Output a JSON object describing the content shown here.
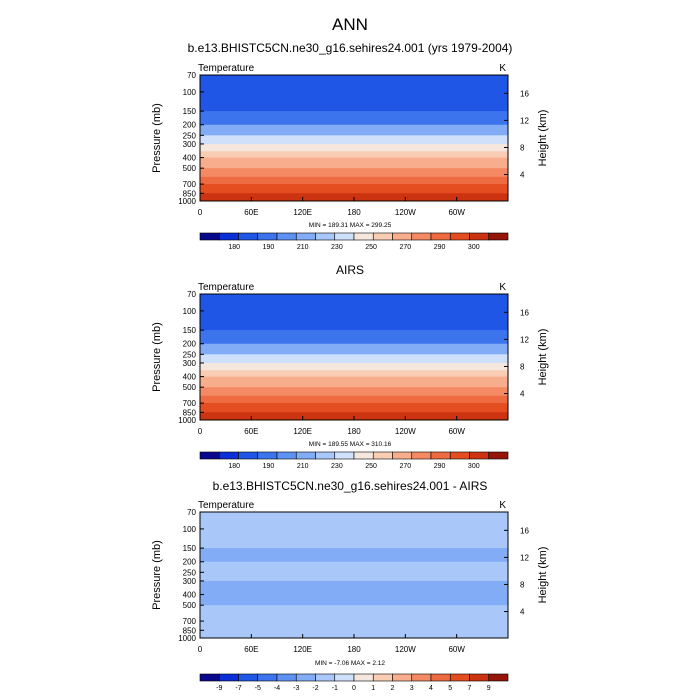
{
  "page_title": "ANN",
  "chart_data": [
    {
      "type": "heatmap",
      "title": "b.e13.BHISTC5CN.ne30_g16.sehires24.001 (yrs 1979-2004)",
      "variable": "Temperature",
      "units": "K",
      "ylabel": "Pressure (mb)",
      "y2label": "Height (km)",
      "x_ticks": [
        "0",
        "60E",
        "120E",
        "180",
        "120W",
        "60W"
      ],
      "x_tick_lon": [
        0,
        60,
        120,
        180,
        240,
        300
      ],
      "xlim": [
        0,
        360
      ],
      "y_ticks": [
        "70",
        "100",
        "150",
        "200",
        "250",
        "300",
        "400",
        "500",
        "700",
        "850",
        "1000"
      ],
      "y_tick_p": [
        70,
        100,
        150,
        200,
        250,
        300,
        400,
        500,
        700,
        850,
        1000
      ],
      "ylim": [
        1000,
        70
      ],
      "y_scale": "log",
      "y2_ticks": [
        "16",
        "12",
        "8",
        "4"
      ],
      "y2_tick_km": [
        16,
        12,
        8,
        4
      ],
      "stats": "MIN = 189.31  MAX = 299.25",
      "colorbar_labels": [
        "180",
        "190",
        "210",
        "230",
        "250",
        "270",
        "290",
        "300"
      ],
      "colors": [
        "#08088c",
        "#0a2fd6",
        "#1f56e6",
        "#3c74ee",
        "#5e91f2",
        "#82acf5",
        "#a9c7f8",
        "#cfe0fb",
        "#f6e7de",
        "#f8cdb4",
        "#f8ae8c",
        "#f48a63",
        "#ee6a40",
        "#e44d20",
        "#cc3310",
        "#951508"
      ],
      "levels_by_pressure": [
        {
          "p": 70,
          "level": 2
        },
        {
          "p": 100,
          "level": 2
        },
        {
          "p": 150,
          "level": 3
        },
        {
          "p": 200,
          "level": 5
        },
        {
          "p": 250,
          "level": 7
        },
        {
          "p": 300,
          "level": 8
        },
        {
          "p": 350,
          "level": 9
        },
        {
          "p": 400,
          "level": 10
        },
        {
          "p": 500,
          "level": 11
        },
        {
          "p": 600,
          "level": 12
        },
        {
          "p": 700,
          "level": 13
        },
        {
          "p": 850,
          "level": 14
        },
        {
          "p": 1000,
          "level": 15
        }
      ]
    },
    {
      "type": "heatmap",
      "title": "AIRS",
      "variable": "Temperature",
      "units": "K",
      "ylabel": "Pressure (mb)",
      "y2label": "Height (km)",
      "x_ticks": [
        "0",
        "60E",
        "120E",
        "180",
        "120W",
        "60W"
      ],
      "x_tick_lon": [
        0,
        60,
        120,
        180,
        240,
        300
      ],
      "xlim": [
        0,
        360
      ],
      "y_ticks": [
        "70",
        "100",
        "150",
        "200",
        "250",
        "300",
        "400",
        "500",
        "700",
        "850",
        "1000"
      ],
      "y_tick_p": [
        70,
        100,
        150,
        200,
        250,
        300,
        400,
        500,
        700,
        850,
        1000
      ],
      "ylim": [
        1000,
        70
      ],
      "y_scale": "log",
      "y2_ticks": [
        "16",
        "12",
        "8",
        "4"
      ],
      "y2_tick_km": [
        16,
        12,
        8,
        4
      ],
      "stats": "MIN = 189.55  MAX = 310.16",
      "colorbar_labels": [
        "180",
        "190",
        "210",
        "230",
        "250",
        "270",
        "290",
        "300"
      ],
      "colors": [
        "#08088c",
        "#0a2fd6",
        "#1f56e6",
        "#3c74ee",
        "#5e91f2",
        "#82acf5",
        "#a9c7f8",
        "#cfe0fb",
        "#f6e7de",
        "#f8cdb4",
        "#f8ae8c",
        "#f48a63",
        "#ee6a40",
        "#e44d20",
        "#cc3310",
        "#951508"
      ],
      "levels_by_pressure": [
        {
          "p": 70,
          "level": 2
        },
        {
          "p": 100,
          "level": 2
        },
        {
          "p": 150,
          "level": 3
        },
        {
          "p": 200,
          "level": 5
        },
        {
          "p": 250,
          "level": 7
        },
        {
          "p": 300,
          "level": 8
        },
        {
          "p": 350,
          "level": 9
        },
        {
          "p": 400,
          "level": 10
        },
        {
          "p": 500,
          "level": 11
        },
        {
          "p": 600,
          "level": 12
        },
        {
          "p": 700,
          "level": 13
        },
        {
          "p": 850,
          "level": 14
        },
        {
          "p": 1000,
          "level": 15
        }
      ]
    },
    {
      "type": "heatmap",
      "title": "b.e13.BHISTC5CN.ne30_g16.sehires24.001 - AIRS",
      "variable": "Temperature",
      "units": "K",
      "ylabel": "Pressure (mb)",
      "y2label": "Height (km)",
      "x_ticks": [
        "0",
        "60E",
        "120E",
        "180",
        "120W",
        "60W"
      ],
      "x_tick_lon": [
        0,
        60,
        120,
        180,
        240,
        300
      ],
      "xlim": [
        0,
        360
      ],
      "y_ticks": [
        "70",
        "100",
        "150",
        "200",
        "250",
        "300",
        "400",
        "500",
        "700",
        "850",
        "1000"
      ],
      "y_tick_p": [
        70,
        100,
        150,
        200,
        250,
        300,
        400,
        500,
        700,
        850,
        1000
      ],
      "ylim": [
        1000,
        70
      ],
      "y_scale": "log",
      "y2_ticks": [
        "16",
        "12",
        "8",
        "4"
      ],
      "y2_tick_km": [
        16,
        12,
        8,
        4
      ],
      "stats": "MIN = -7.06  MAX =  2.12",
      "colorbar_labels": [
        "-9",
        "-7",
        "-5",
        "-4",
        "-3",
        "-2",
        "-1",
        "0",
        "1",
        "2",
        "3",
        "4",
        "5",
        "7",
        "9"
      ],
      "colors": [
        "#08088c",
        "#0a2fd6",
        "#1f56e6",
        "#3c74ee",
        "#5e91f2",
        "#82acf5",
        "#a9c7f8",
        "#cfe0fb",
        "#f6e7de",
        "#f8cdb4",
        "#f8ae8c",
        "#f48a63",
        "#ee6a40",
        "#e44d20",
        "#cc3310",
        "#951508"
      ],
      "levels_by_pressure": [
        {
          "p": 70,
          "level": 6
        },
        {
          "p": 100,
          "level": 6
        },
        {
          "p": 150,
          "level": 5
        },
        {
          "p": 200,
          "level": 6
        },
        {
          "p": 300,
          "level": 5
        },
        {
          "p": 500,
          "level": 6
        },
        {
          "p": 700,
          "level": 6
        },
        {
          "p": 850,
          "level": 6
        },
        {
          "p": 1000,
          "level": 6
        }
      ]
    }
  ]
}
